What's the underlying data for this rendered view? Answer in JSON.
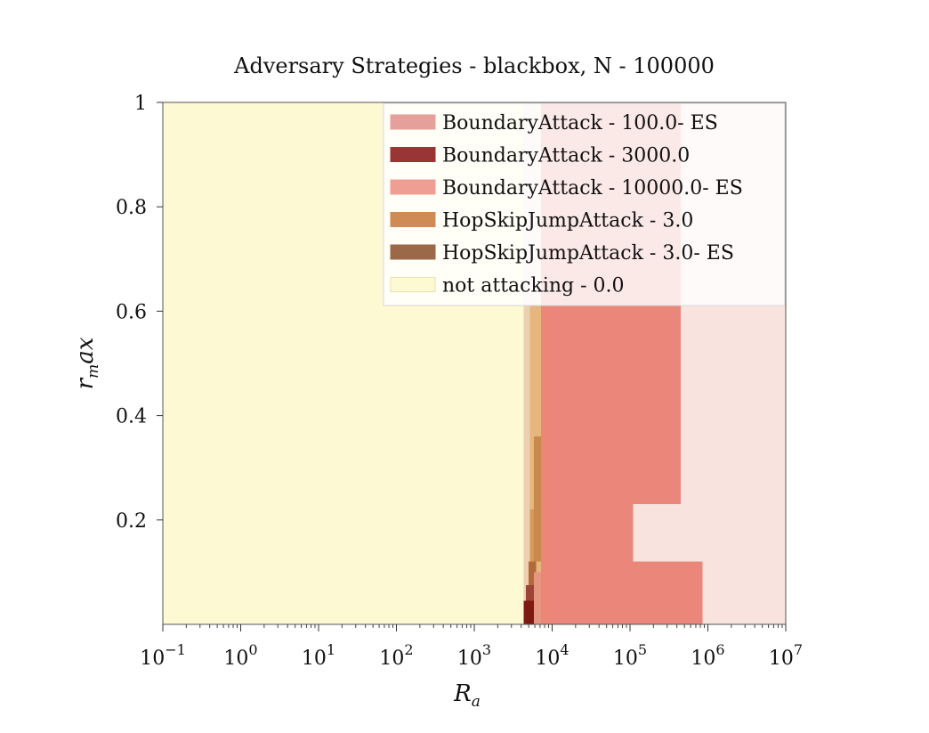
{
  "chart_data": {
    "type": "heatmap",
    "title": "Adversary Strategies - blackbox, N - 100000",
    "xlabel_main": "R",
    "xlabel_sub": "a",
    "ylabel_main": "r",
    "ylabel_sub": "m",
    "ylabel_tail": "ax",
    "x_scale": "log",
    "xlim": [
      0.1,
      10000000
    ],
    "ylim": [
      0.0,
      1.0
    ],
    "x_ticks": [
      {
        "value": 0.1,
        "base": "10",
        "exp": "−1"
      },
      {
        "value": 1,
        "base": "10",
        "exp": "0"
      },
      {
        "value": 10,
        "base": "10",
        "exp": "1"
      },
      {
        "value": 100,
        "base": "10",
        "exp": "2"
      },
      {
        "value": 1000,
        "base": "10",
        "exp": "3"
      },
      {
        "value": 10000,
        "base": "10",
        "exp": "4"
      },
      {
        "value": 100000,
        "base": "10",
        "exp": "5"
      },
      {
        "value": 1000000,
        "base": "10",
        "exp": "6"
      },
      {
        "value": 10000000,
        "base": "10",
        "exp": "7"
      }
    ],
    "y_ticks": [
      {
        "value": 0.2,
        "label": "0.2"
      },
      {
        "value": 0.4,
        "label": "0.4"
      },
      {
        "value": 0.6,
        "label": "0.6"
      },
      {
        "value": 0.8,
        "label": "0.8"
      },
      {
        "value": 1.0,
        "label": "1"
      }
    ],
    "grid": false,
    "legend_position": "top-right",
    "legend": [
      {
        "label": "BoundaryAttack - 100.0- ES",
        "color": "#e6a09b"
      },
      {
        "label": "BoundaryAttack - 3000.0",
        "color": "#9a3535"
      },
      {
        "label": "BoundaryAttack - 10000.0- ES",
        "color": "#ef9e93"
      },
      {
        "label": "HopSkipJumpAttack - 3.0",
        "color": "#d08a55"
      },
      {
        "label": "HopSkipJumpAttack - 3.0- ES",
        "color": "#9b6848"
      },
      {
        "label": "not attacking - 0.0",
        "color": "#fdf9d3"
      }
    ],
    "regions": [
      {
        "x0": 0.1,
        "x1": 10000000,
        "y0": 0.0,
        "y1": 1.0,
        "color": "#fdf9d3"
      },
      {
        "x0": 4300,
        "x1": 10000000,
        "y0": 0.0,
        "y1": 1.0,
        "color": "#f8e3df"
      },
      {
        "x0": 4300,
        "x1": 5200,
        "y0": 0.0,
        "y1": 0.61,
        "color": "#ecd0b0"
      },
      {
        "x0": 5200,
        "x1": 7200,
        "y0": 0.0,
        "y1": 0.61,
        "color": "#e6b67e"
      },
      {
        "x0": 7200,
        "x1": 9000,
        "y0": 0.0,
        "y1": 1.0,
        "color": "#ec8778"
      },
      {
        "x0": 9000,
        "x1": 450000,
        "y0": 0.0,
        "y1": 1.0,
        "color": "#ea877a"
      },
      {
        "x0": 110000,
        "x1": 450000,
        "y0": 0.12,
        "y1": 0.23,
        "color": "#f8e3df"
      },
      {
        "x0": 450000,
        "x1": 850000,
        "y0": 0.0,
        "y1": 0.12,
        "color": "#ea877a"
      },
      {
        "x0": 5800,
        "x1": 7200,
        "y0": 0.12,
        "y1": 0.36,
        "color": "#c88a4c"
      },
      {
        "x0": 5200,
        "x1": 5800,
        "y0": 0.1,
        "y1": 0.22,
        "color": "#d49a5a"
      },
      {
        "x0": 5000,
        "x1": 6200,
        "y0": 0.07,
        "y1": 0.12,
        "color": "#b36a3a"
      },
      {
        "x0": 4600,
        "x1": 6000,
        "y0": 0.045,
        "y1": 0.075,
        "color": "#9b4438"
      },
      {
        "x0": 4300,
        "x1": 5800,
        "y0": 0.0,
        "y1": 0.045,
        "color": "#7e1a12"
      },
      {
        "x0": 5800,
        "x1": 7200,
        "y0": 0.0,
        "y1": 0.1,
        "color": "#e69580"
      }
    ]
  }
}
